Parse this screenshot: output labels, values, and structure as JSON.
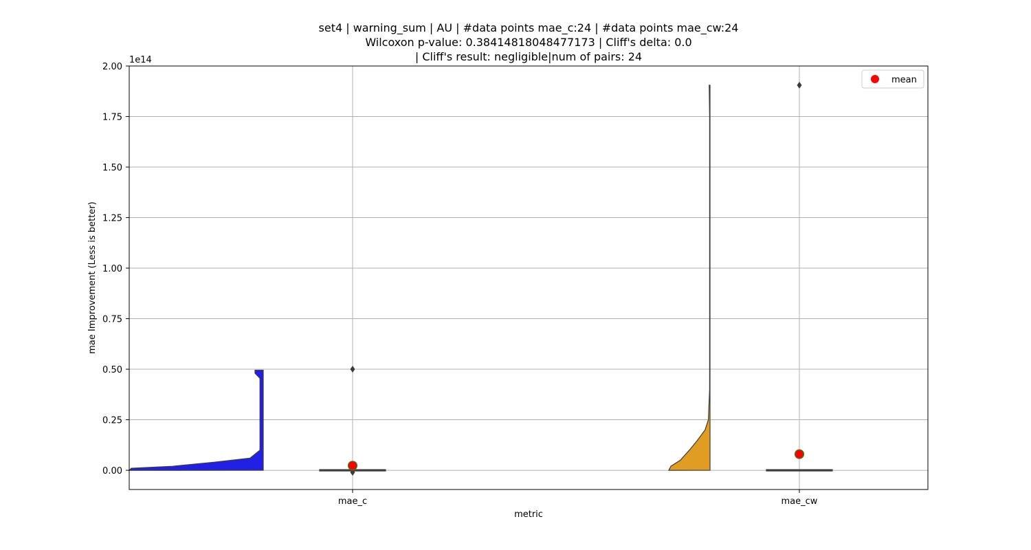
{
  "chart_data": {
    "type": "violin",
    "title_lines": [
      "set4 | warning_sum | AU | #data points mae_c:24 | #data points mae_cw:24",
      "Wilcoxon p-value: 0.38414818048477173 | Cliff's delta: 0.0",
      "| Cliff's result: negligible|num of pairs: 24"
    ],
    "xlabel": "metric",
    "ylabel": "mae Improvement (Less is better)",
    "y_scale_label": "1e14",
    "ylim": [
      -0.095,
      2.0
    ],
    "y_ticks": [
      0.0,
      0.25,
      0.5,
      0.75,
      1.0,
      1.25,
      1.5,
      1.75,
      2.0
    ],
    "y_tick_labels": [
      "0.00",
      "0.25",
      "0.50",
      "0.75",
      "1.00",
      "1.25",
      "1.50",
      "1.75",
      "2.00"
    ],
    "grid": true,
    "categories": [
      "mae_c",
      "mae_cw"
    ],
    "series": [
      {
        "category": "mae_c",
        "color": "#2020e6",
        "min": 0.0,
        "q1": 0.0,
        "median": 0.0,
        "q3": 0.0,
        "max": 0.0,
        "outliers": [
          0.5,
          -0.01
        ],
        "mean": 0.023,
        "density_profile": [
          [
            0.0,
            1.0
          ],
          [
            0.01,
            0.8
          ],
          [
            0.02,
            0.55
          ],
          [
            0.04,
            0.3
          ],
          [
            0.06,
            0.08
          ],
          [
            0.1,
            0.02
          ],
          [
            0.3,
            0.02
          ],
          [
            0.455,
            0.02
          ],
          [
            0.48,
            0.05
          ],
          [
            0.495,
            0.05
          ]
        ]
      },
      {
        "category": "mae_cw",
        "color": "#e19c24",
        "min": 0.0,
        "q1": 0.0,
        "median": 0.0,
        "q3": 0.0,
        "max": 0.0,
        "outliers": [
          1.905
        ],
        "mean": 0.08,
        "density_profile": [
          [
            0.0,
            1.0
          ],
          [
            0.02,
            0.95
          ],
          [
            0.05,
            0.72
          ],
          [
            0.1,
            0.5
          ],
          [
            0.15,
            0.3
          ],
          [
            0.2,
            0.12
          ],
          [
            0.25,
            0.04
          ],
          [
            0.4,
            0.01
          ],
          [
            1.0,
            0.01
          ],
          [
            1.75,
            0.01
          ],
          [
            1.905,
            0.02
          ]
        ]
      }
    ],
    "legend": {
      "position": "top-right",
      "entries": [
        {
          "label": "mean",
          "color": "#ff0000"
        }
      ]
    },
    "mean_marker_color": "#ff0000",
    "mean_marker_edge": "#2e8b20"
  }
}
